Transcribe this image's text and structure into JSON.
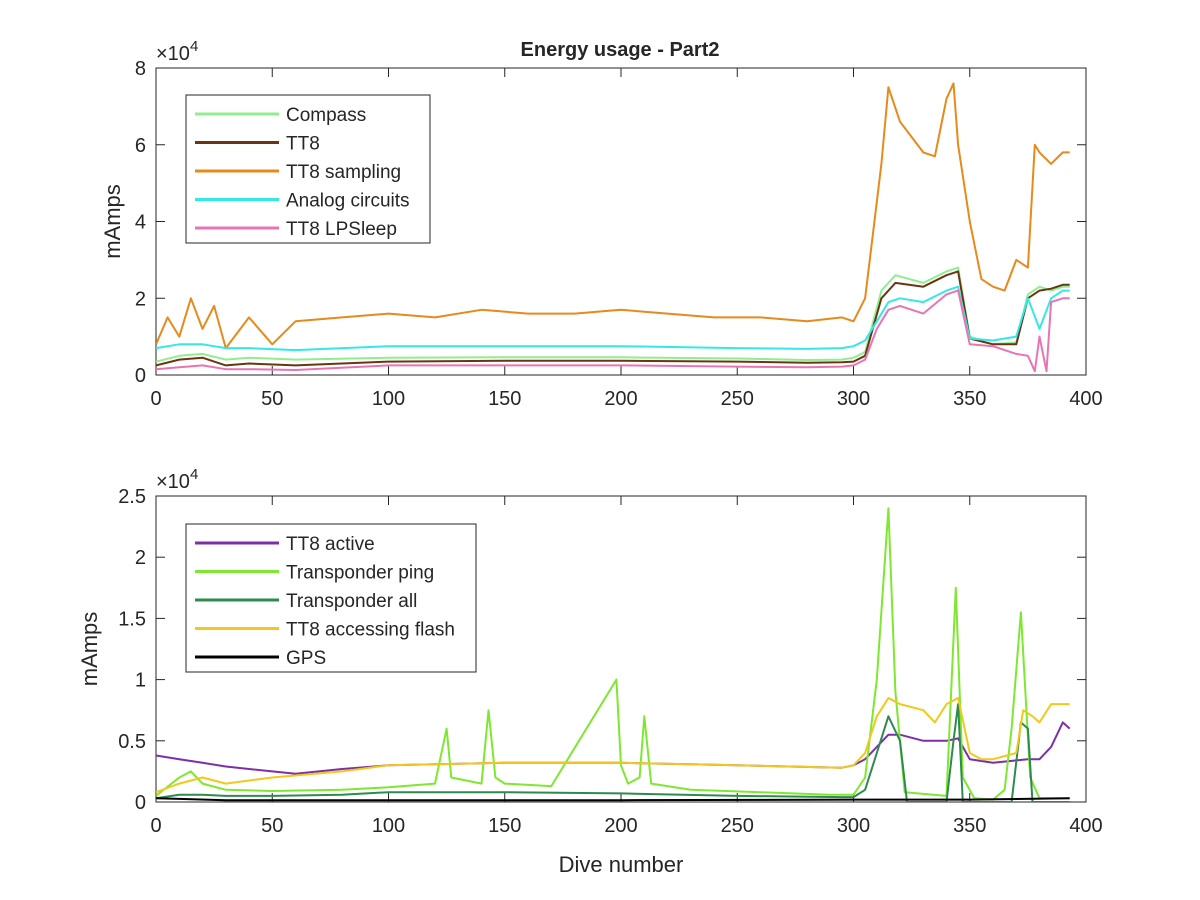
{
  "figure": {
    "title": "Energy usage - Part2"
  },
  "chart_data": [
    {
      "type": "line",
      "title": "Energy usage - Part2",
      "xlabel": "",
      "ylabel": "mAmps",
      "xlim": [
        0,
        400
      ],
      "ylim": [
        0,
        80000
      ],
      "exponent_label": "×10",
      "exponent_power": "4",
      "x_ticks": [
        0,
        50,
        100,
        150,
        200,
        250,
        300,
        350,
        400
      ],
      "y_ticks": [
        0,
        20000,
        40000,
        60000,
        80000
      ],
      "y_tick_labels": [
        "0",
        "2",
        "4",
        "6",
        "8"
      ],
      "grid": false,
      "legend_position": "top-left",
      "series": [
        {
          "name": "Compass",
          "color": "#90ee90",
          "x": [
            0,
            10,
            20,
            30,
            40,
            60,
            100,
            150,
            200,
            250,
            280,
            295,
            300,
            305,
            312,
            318,
            330,
            340,
            345,
            350,
            360,
            370,
            375,
            380,
            385,
            390,
            393
          ],
          "y": [
            3500,
            5000,
            5500,
            4000,
            4500,
            4000,
            4500,
            4600,
            4600,
            4300,
            3900,
            4000,
            4500,
            6000,
            22000,
            26000,
            24000,
            27000,
            28000,
            10000,
            8000,
            8500,
            21000,
            23000,
            22000,
            23000,
            23000
          ]
        },
        {
          "name": "TT8",
          "color": "#6b3512",
          "x": [
            0,
            10,
            20,
            30,
            40,
            60,
            100,
            150,
            200,
            250,
            280,
            295,
            300,
            305,
            312,
            318,
            330,
            340,
            345,
            350,
            360,
            370,
            375,
            380,
            385,
            390,
            393
          ],
          "y": [
            2500,
            4000,
            4500,
            2500,
            3000,
            2500,
            3500,
            3700,
            3700,
            3500,
            3200,
            3300,
            3500,
            5000,
            20000,
            24000,
            23000,
            26000,
            27000,
            9500,
            8000,
            8000,
            20000,
            22000,
            22500,
            23500,
            23500
          ]
        },
        {
          "name": "TT8 sampling",
          "color": "#e8891c",
          "x": [
            0,
            5,
            10,
            15,
            20,
            25,
            30,
            40,
            50,
            60,
            80,
            100,
            120,
            140,
            160,
            180,
            200,
            220,
            240,
            260,
            280,
            295,
            300,
            305,
            308,
            312,
            315,
            320,
            330,
            335,
            340,
            343,
            345,
            350,
            355,
            360,
            365,
            370,
            375,
            378,
            380,
            385,
            390,
            393
          ],
          "y": [
            8000,
            15000,
            10000,
            20000,
            12000,
            18000,
            7000,
            15000,
            8000,
            14000,
            15000,
            16000,
            15000,
            17000,
            16000,
            16000,
            17000,
            16000,
            15000,
            15000,
            14000,
            15000,
            14000,
            20000,
            35000,
            55000,
            75000,
            66000,
            58000,
            57000,
            72000,
            76000,
            60000,
            40000,
            25000,
            23000,
            22000,
            30000,
            28000,
            60000,
            58000,
            55000,
            58000,
            58000
          ]
        },
        {
          "name": "Analog circuits",
          "color": "#33e8e8",
          "x": [
            0,
            10,
            20,
            30,
            40,
            60,
            100,
            150,
            200,
            250,
            280,
            295,
            300,
            305,
            310,
            315,
            320,
            330,
            340,
            345,
            350,
            360,
            370,
            375,
            380,
            385,
            390,
            393
          ],
          "y": [
            7000,
            8000,
            8000,
            7000,
            7000,
            6500,
            7500,
            7500,
            7500,
            7000,
            6800,
            7000,
            7500,
            9000,
            14000,
            19000,
            20000,
            19000,
            22000,
            23000,
            9500,
            9000,
            10000,
            20000,
            12000,
            20000,
            22000,
            22000
          ]
        },
        {
          "name": "TT8 LPSleep",
          "color": "#e874b4",
          "x": [
            0,
            10,
            20,
            30,
            40,
            60,
            100,
            150,
            200,
            250,
            280,
            295,
            300,
            305,
            310,
            315,
            320,
            330,
            340,
            345,
            350,
            360,
            370,
            375,
            378,
            380,
            383,
            385,
            390,
            393
          ],
          "y": [
            1500,
            2000,
            2500,
            1500,
            1500,
            1300,
            2500,
            2500,
            2500,
            2200,
            2000,
            2200,
            2500,
            4000,
            12000,
            17000,
            18000,
            16000,
            21000,
            22000,
            8000,
            7500,
            5500,
            5000,
            1000,
            10000,
            1000,
            19000,
            20000,
            20000
          ]
        }
      ]
    },
    {
      "type": "line",
      "title": "",
      "xlabel": "Dive number",
      "ylabel": "mAmps",
      "xlim": [
        0,
        400
      ],
      "ylim": [
        0,
        25000
      ],
      "exponent_label": "×10",
      "exponent_power": "4",
      "x_ticks": [
        0,
        50,
        100,
        150,
        200,
        250,
        300,
        350,
        400
      ],
      "y_ticks": [
        0,
        5000,
        10000,
        15000,
        20000,
        25000
      ],
      "y_tick_labels": [
        "0",
        "0.5",
        "1",
        "1.5",
        "2",
        "2.5"
      ],
      "grid": false,
      "legend_position": "top-left",
      "series": [
        {
          "name": "TT8 active",
          "color": "#7e2fa8",
          "x": [
            0,
            10,
            20,
            30,
            40,
            50,
            60,
            80,
            100,
            150,
            200,
            250,
            295,
            300,
            305,
            310,
            315,
            320,
            330,
            340,
            345,
            350,
            360,
            370,
            375,
            380,
            385,
            390,
            393
          ],
          "y": [
            3800,
            3500,
            3200,
            2900,
            2700,
            2500,
            2300,
            2700,
            3000,
            3200,
            3200,
            3000,
            2800,
            3000,
            3500,
            4500,
            5500,
            5500,
            5000,
            5000,
            5200,
            3500,
            3200,
            3400,
            3500,
            3500,
            4500,
            6500,
            6000
          ]
        },
        {
          "name": "Transponder ping",
          "color": "#7ee830",
          "x": [
            0,
            10,
            15,
            20,
            30,
            50,
            80,
            100,
            120,
            125,
            127,
            140,
            143,
            146,
            150,
            170,
            198,
            200,
            203,
            208,
            210,
            213,
            230,
            260,
            290,
            300,
            305,
            310,
            315,
            318,
            322,
            340,
            344,
            347,
            352,
            360,
            365,
            368,
            372,
            376,
            380,
            390,
            393
          ],
          "y": [
            500,
            2000,
            2500,
            1500,
            1000,
            900,
            1000,
            1200,
            1500,
            6000,
            2000,
            1500,
            7500,
            2000,
            1500,
            1300,
            10000,
            3000,
            1500,
            2000,
            7000,
            1500,
            1000,
            800,
            600,
            600,
            2000,
            10000,
            24000,
            9000,
            800,
            500,
            17500,
            2000,
            300,
            200,
            1000,
            6000,
            15500,
            2000,
            300,
            300,
            300
          ]
        },
        {
          "name": "Transponder all",
          "color": "#2e8a4e",
          "x": [
            0,
            10,
            20,
            30,
            50,
            80,
            100,
            150,
            200,
            250,
            295,
            300,
            305,
            310,
            315,
            320,
            323,
            340,
            343,
            345,
            347,
            368,
            372,
            375,
            377,
            390,
            393
          ],
          "y": [
            300,
            600,
            600,
            500,
            500,
            600,
            800,
            800,
            700,
            500,
            400,
            400,
            1000,
            4000,
            7000,
            5000,
            0,
            0,
            5000,
            8000,
            0,
            0,
            6500,
            6000,
            0,
            0,
            0
          ]
        },
        {
          "name": "TT8 accessing flash",
          "color": "#f2c91a",
          "x": [
            0,
            10,
            20,
            30,
            50,
            80,
            100,
            150,
            200,
            250,
            295,
            300,
            305,
            310,
            315,
            320,
            330,
            335,
            340,
            345,
            350,
            355,
            360,
            370,
            373,
            377,
            380,
            385,
            390,
            393
          ],
          "y": [
            800,
            1500,
            2000,
            1500,
            2000,
            2500,
            3000,
            3200,
            3200,
            3000,
            2800,
            3000,
            4000,
            7000,
            8500,
            8000,
            7500,
            6500,
            8000,
            8500,
            4000,
            3500,
            3500,
            4000,
            7500,
            7000,
            6500,
            8000,
            8000,
            8000
          ]
        },
        {
          "name": "GPS",
          "color": "#000000",
          "x": [
            0,
            10,
            30,
            100,
            200,
            300,
            350,
            393
          ],
          "y": [
            300,
            250,
            150,
            150,
            150,
            200,
            200,
            300
          ]
        }
      ]
    }
  ]
}
